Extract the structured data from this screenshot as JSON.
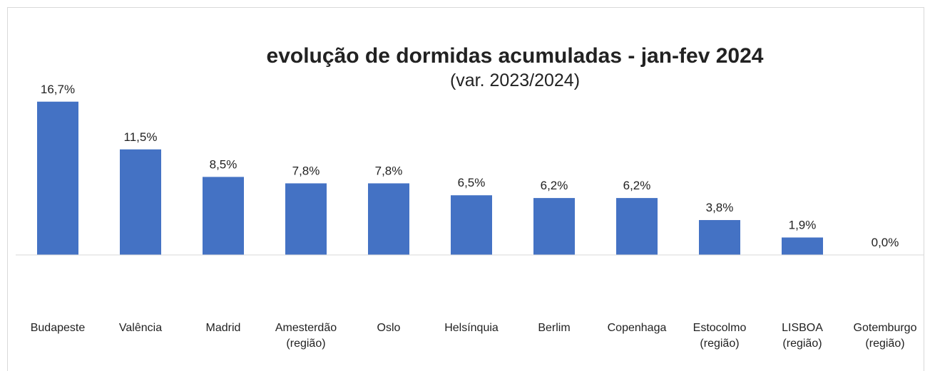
{
  "chart_data": {
    "type": "bar",
    "title": "evolução de dormidas acumuladas - jan-fev 2024",
    "subtitle": "(var. 2023/2024)",
    "categories": [
      [
        "Budapeste"
      ],
      [
        "Valência"
      ],
      [
        "Madrid"
      ],
      [
        "Amesterdão",
        "(região)"
      ],
      [
        "Oslo"
      ],
      [
        "Helsínquia"
      ],
      [
        "Berlim"
      ],
      [
        "Copenhaga"
      ],
      [
        "Estocolmo",
        "(região)"
      ],
      [
        "LISBOA",
        "(região)"
      ],
      [
        "Gotemburgo",
        "(região)"
      ]
    ],
    "values": [
      16.7,
      11.5,
      8.5,
      7.8,
      7.8,
      6.5,
      6.2,
      6.2,
      3.8,
      1.9,
      0.0
    ],
    "value_labels": [
      "16,7%",
      "11,5%",
      "8,5%",
      "7,8%",
      "7,8%",
      "6,5%",
      "6,2%",
      "6,2%",
      "3,8%",
      "1,9%",
      "0,0%"
    ],
    "color": "#4472c4",
    "ylim": [
      0,
      18
    ]
  }
}
